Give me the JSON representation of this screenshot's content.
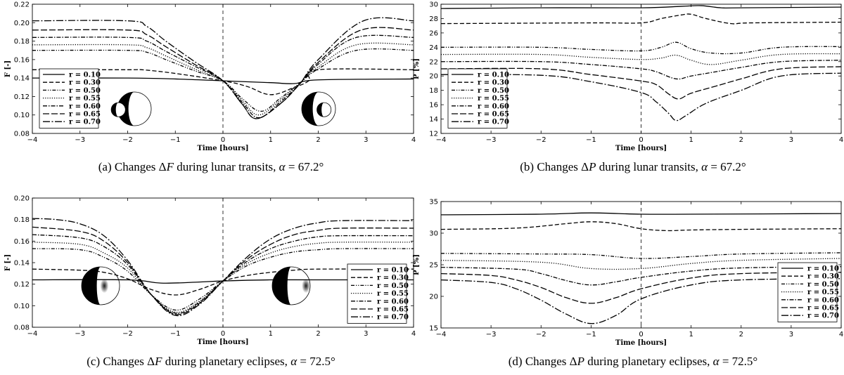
{
  "chart_data": [
    {
      "id": "a",
      "type": "line",
      "caption": {
        "prefix": "(a) Changes Δ",
        "var": "F",
        "mid": " during lunar transits, ",
        "alpha_sym": "α",
        "alpha_val": " = 67.2°"
      },
      "xlabel": "Time [hours]",
      "ylabel": "F [-]",
      "xlim": [
        -4,
        4
      ],
      "ylim": [
        0.08,
        0.22
      ],
      "xticks": [
        -4,
        -3,
        -2,
        -1,
        0,
        1,
        2,
        3,
        4
      ],
      "yticks": [
        "0.08",
        "0.10",
        "0.12",
        "0.14",
        "0.16",
        "0.18",
        "0.20",
        "0.22"
      ],
      "legend_position": "lower-left",
      "vline_at": 0,
      "insets": [
        "transit-left",
        "transit-right"
      ],
      "series": [
        {
          "name": "r = 0.10",
          "dash": "solid",
          "x": [
            -4,
            -2,
            -1,
            0,
            1,
            1.5,
            2,
            4
          ],
          "y": [
            0.14,
            0.14,
            0.139,
            0.137,
            0.135,
            0.134,
            0.138,
            0.139
          ]
        },
        {
          "name": "r = 0.30",
          "dash": "dashed",
          "x": [
            -4,
            -2,
            -1.7,
            -1,
            0,
            0.5,
            1,
            1.5,
            1.8,
            2,
            4
          ],
          "y": [
            0.149,
            0.149,
            0.149,
            0.145,
            0.137,
            0.131,
            0.122,
            0.13,
            0.137,
            0.149,
            0.149
          ]
        },
        {
          "name": "r = 0.50",
          "dash": "dashdotdot",
          "x": [
            -4,
            -2,
            -1.6,
            -1.2,
            -0.6,
            0,
            0.4,
            0.8,
            1.2,
            1.6,
            2,
            2.8,
            4
          ],
          "y": [
            0.17,
            0.17,
            0.168,
            0.16,
            0.148,
            0.137,
            0.118,
            0.104,
            0.118,
            0.134,
            0.15,
            0.17,
            0.17
          ]
        },
        {
          "name": "r = 0.55",
          "dash": "dotted",
          "x": [
            -4,
            -2,
            -1.6,
            -1.2,
            -0.6,
            0,
            0.4,
            0.75,
            1.2,
            1.6,
            2,
            2.8,
            4
          ],
          "y": [
            0.176,
            0.176,
            0.173,
            0.164,
            0.15,
            0.137,
            0.116,
            0.1,
            0.116,
            0.134,
            0.152,
            0.176,
            0.176
          ]
        },
        {
          "name": "r = 0.60",
          "dash": "dashdot",
          "x": [
            -4,
            -2,
            -1.6,
            -1.2,
            -0.6,
            0,
            0.4,
            0.75,
            1.2,
            1.6,
            2,
            2.8,
            4
          ],
          "y": [
            0.184,
            0.184,
            0.18,
            0.169,
            0.153,
            0.137,
            0.114,
            0.097,
            0.114,
            0.133,
            0.155,
            0.184,
            0.184
          ]
        },
        {
          "name": "r = 0.65",
          "dash": "longdash",
          "x": [
            -4,
            -2,
            -1.6,
            -1.2,
            -0.6,
            0,
            0.4,
            0.7,
            1.2,
            1.6,
            2,
            2.9,
            4
          ],
          "y": [
            0.192,
            0.192,
            0.187,
            0.174,
            0.155,
            0.137,
            0.112,
            0.096,
            0.112,
            0.133,
            0.157,
            0.192,
            0.192
          ]
        },
        {
          "name": "r = 0.70",
          "dash": "longdashdot",
          "x": [
            -4,
            -2,
            -1.6,
            -1.2,
            -0.6,
            0,
            0.4,
            0.7,
            1.2,
            1.6,
            2,
            2.95,
            4
          ],
          "y": [
            0.202,
            0.202,
            0.196,
            0.18,
            0.158,
            0.137,
            0.112,
            0.096,
            0.112,
            0.133,
            0.16,
            0.202,
            0.202
          ]
        }
      ]
    },
    {
      "id": "b",
      "type": "line",
      "caption": {
        "prefix": "(b) Changes Δ",
        "var": "P",
        "mid": " during lunar transits, ",
        "alpha_sym": "α",
        "alpha_val": " = 67.2°"
      },
      "xlabel": "Time [hours]",
      "ylabel": "P [%]",
      "xlim": [
        -4,
        4
      ],
      "ylim": [
        12,
        30
      ],
      "xticks": [
        -4,
        -3,
        -2,
        -1,
        0,
        1,
        2,
        3,
        4
      ],
      "yticks": [
        "12",
        "14",
        "16",
        "18",
        "20",
        "22",
        "24",
        "26",
        "28",
        "30"
      ],
      "legend_position": "lower-left",
      "vline_at": 0,
      "series": [
        {
          "name": "r = 0.10",
          "dash": "solid",
          "x": [
            -4,
            -2,
            0,
            0.8,
            1.2,
            1.6,
            2,
            4
          ],
          "y": [
            29.4,
            29.5,
            29.5,
            29.7,
            29.8,
            29.5,
            29.5,
            29.6
          ]
        },
        {
          "name": "r = 0.30",
          "dash": "dashed",
          "x": [
            -4,
            -1,
            0,
            0.4,
            0.8,
            1,
            1.3,
            1.8,
            2.2,
            4
          ],
          "y": [
            27.3,
            27.4,
            27.4,
            28.0,
            28.5,
            28.6,
            28.0,
            27.3,
            27.4,
            27.5
          ]
        },
        {
          "name": "r = 0.50",
          "dash": "dashdotdot",
          "x": [
            -4,
            -2,
            -1,
            0,
            0.4,
            0.7,
            1,
            1.4,
            2,
            2.8,
            4
          ],
          "y": [
            24.0,
            24.0,
            23.7,
            23.5,
            24.0,
            24.7,
            23.8,
            23.2,
            23.2,
            24.0,
            24.1
          ]
        },
        {
          "name": "r = 0.55",
          "dash": "dotted",
          "x": [
            -4,
            -2,
            -1,
            0,
            0.4,
            0.7,
            1,
            1.4,
            2,
            2.8,
            4
          ],
          "y": [
            23.0,
            23.0,
            22.6,
            22.3,
            22.5,
            22.9,
            22.2,
            21.6,
            22.2,
            23.0,
            23.1
          ]
        },
        {
          "name": "r = 0.60",
          "dash": "dashdot",
          "x": [
            -4,
            -2,
            -1,
            0,
            0.3,
            0.7,
            1,
            1.5,
            2,
            2.8,
            4
          ],
          "y": [
            22.0,
            22.0,
            21.6,
            21.0,
            20.6,
            19.6,
            20.0,
            20.6,
            21.2,
            22.0,
            22.2
          ]
        },
        {
          "name": "r = 0.65",
          "dash": "longdash",
          "x": [
            -4,
            -2,
            -1,
            0,
            0.3,
            0.55,
            0.75,
            1,
            1.5,
            2,
            2.8,
            4
          ],
          "y": [
            21.0,
            21.0,
            20.2,
            19.3,
            18.8,
            17.5,
            16.8,
            17.6,
            18.6,
            19.6,
            21.0,
            21.3
          ]
        },
        {
          "name": "r = 0.70",
          "dash": "longdashdot",
          "x": [
            -4,
            -2,
            -1,
            0,
            0.3,
            0.55,
            0.7,
            0.9,
            1.3,
            2,
            2.8,
            4
          ],
          "y": [
            20.2,
            20.1,
            19.2,
            17.7,
            16.4,
            14.8,
            13.8,
            14.5,
            16.2,
            18.0,
            20.0,
            20.4
          ]
        }
      ]
    },
    {
      "id": "c",
      "type": "line",
      "caption": {
        "prefix": "(c) Changes Δ",
        "var": "F",
        "mid": " during planetary eclipses, ",
        "alpha_sym": "α",
        "alpha_val": " = 72.5°"
      },
      "xlabel": "Time [hours]",
      "ylabel": "F [-]",
      "xlim": [
        -4,
        4
      ],
      "ylim": [
        0.08,
        0.2
      ],
      "xticks": [
        -4,
        -3,
        -2,
        -1,
        0,
        1,
        2,
        3,
        4
      ],
      "yticks": [
        "0.08",
        "0.10",
        "0.12",
        "0.14",
        "0.16",
        "0.18",
        "0.20"
      ],
      "legend_position": "right",
      "vline_at": 0,
      "insets": [
        "eclipse-left",
        "eclipse-right"
      ],
      "series": [
        {
          "name": "r = 0.10",
          "dash": "solid",
          "x": [
            -4,
            -2,
            -1.3,
            -0.5,
            0,
            1,
            2,
            4
          ],
          "y": [
            0.124,
            0.124,
            0.121,
            0.122,
            0.123,
            0.124,
            0.124,
            0.124
          ]
        },
        {
          "name": "r = 0.30",
          "dash": "dashed",
          "x": [
            -4,
            -3,
            -2.5,
            -2,
            -1.5,
            -1,
            -0.5,
            0,
            0.5,
            1,
            1.5,
            2,
            4
          ],
          "y": [
            0.134,
            0.133,
            0.131,
            0.125,
            0.115,
            0.11,
            0.115,
            0.123,
            0.128,
            0.131,
            0.133,
            0.134,
            0.134
          ]
        },
        {
          "name": "r = 0.50",
          "dash": "dashdotdot",
          "x": [
            -4,
            -3,
            -2.5,
            -2,
            -1.5,
            -1,
            -0.5,
            0,
            0.5,
            1,
            1.5,
            2,
            2.5,
            4
          ],
          "y": [
            0.153,
            0.152,
            0.145,
            0.132,
            0.11,
            0.096,
            0.106,
            0.123,
            0.137,
            0.145,
            0.15,
            0.152,
            0.153,
            0.153
          ]
        },
        {
          "name": "r = 0.55",
          "dash": "dotted",
          "x": [
            -4,
            -3,
            -2.5,
            -2,
            -1.5,
            -1,
            -0.5,
            0,
            0.5,
            1,
            1.5,
            2,
            2.5,
            4
          ],
          "y": [
            0.159,
            0.157,
            0.149,
            0.135,
            0.11,
            0.094,
            0.104,
            0.123,
            0.139,
            0.149,
            0.155,
            0.158,
            0.159,
            0.159
          ]
        },
        {
          "name": "r = 0.60",
          "dash": "dashdot",
          "x": [
            -4,
            -3,
            -2.5,
            -2,
            -1.5,
            -1,
            -0.5,
            0,
            0.5,
            1,
            1.5,
            2,
            2.5,
            4
          ],
          "y": [
            0.166,
            0.163,
            0.155,
            0.138,
            0.11,
            0.093,
            0.103,
            0.123,
            0.141,
            0.153,
            0.16,
            0.164,
            0.165,
            0.165
          ]
        },
        {
          "name": "r = 0.65",
          "dash": "longdash",
          "x": [
            -4,
            -3,
            -2.5,
            -2,
            -1.5,
            -1,
            -0.5,
            0,
            0.5,
            1,
            1.5,
            2,
            2.5,
            4
          ],
          "y": [
            0.173,
            0.169,
            0.16,
            0.14,
            0.11,
            0.092,
            0.102,
            0.123,
            0.143,
            0.157,
            0.166,
            0.17,
            0.172,
            0.172
          ]
        },
        {
          "name": "r = 0.70",
          "dash": "longdashdot",
          "x": [
            -4,
            -3.5,
            -3,
            -2.5,
            -2,
            -1.5,
            -1,
            -0.5,
            0,
            0.5,
            1,
            1.5,
            2,
            2.5,
            4
          ],
          "y": [
            0.181,
            0.18,
            0.176,
            0.165,
            0.142,
            0.11,
            0.091,
            0.101,
            0.123,
            0.145,
            0.162,
            0.172,
            0.177,
            0.179,
            0.179
          ]
        }
      ]
    },
    {
      "id": "d",
      "type": "line",
      "caption": {
        "prefix": "(d) Changes Δ",
        "var": "P",
        "mid": " during planetary eclipses, ",
        "alpha_sym": "α",
        "alpha_val": " = 72.5°"
      },
      "xlabel": "Time [hours]",
      "ylabel": "P [%]",
      "xlim": [
        -4,
        4
      ],
      "ylim": [
        15,
        35
      ],
      "xticks": [
        -4,
        -3,
        -2,
        -1,
        0,
        1,
        2,
        3,
        4
      ],
      "yticks": [
        "15",
        "20",
        "25",
        "30",
        "35"
      ],
      "legend_position": "lower-right",
      "vline_at": 0,
      "series": [
        {
          "name": "r = 0.10",
          "dash": "solid",
          "x": [
            -4,
            -2,
            -1,
            0,
            1,
            4
          ],
          "y": [
            32.9,
            33.0,
            33.2,
            33.0,
            33.0,
            33.1
          ]
        },
        {
          "name": "r = 0.30",
          "dash": "dashed",
          "x": [
            -4,
            -2.5,
            -1.5,
            -1,
            -0.5,
            0,
            0.5,
            1,
            2,
            4
          ],
          "y": [
            30.6,
            30.8,
            31.5,
            31.8,
            31.5,
            30.7,
            30.4,
            30.5,
            30.6,
            30.7
          ]
        },
        {
          "name": "r = 0.50",
          "dash": "dashdotdot",
          "x": [
            -4,
            -2,
            -1,
            0,
            1,
            2,
            4
          ],
          "y": [
            26.8,
            26.7,
            26.6,
            26.0,
            26.3,
            26.7,
            26.9
          ]
        },
        {
          "name": "r = 0.55",
          "dash": "dotted",
          "x": [
            -4,
            -2,
            -1,
            0,
            1,
            2,
            4
          ],
          "y": [
            25.7,
            25.4,
            24.4,
            24.4,
            25.2,
            25.7,
            26.0
          ]
        },
        {
          "name": "r = 0.60",
          "dash": "dashdot",
          "x": [
            -4,
            -2.5,
            -2,
            -1.5,
            -1,
            -0.5,
            0,
            1,
            2,
            4
          ],
          "y": [
            24.6,
            24.3,
            23.6,
            22.5,
            21.8,
            22.3,
            23.0,
            24.0,
            24.5,
            24.7
          ]
        },
        {
          "name": "r = 0.65",
          "dash": "longdash",
          "x": [
            -4,
            -3,
            -2.5,
            -2,
            -1.5,
            -1,
            -0.5,
            0,
            1,
            2,
            4
          ],
          "y": [
            23.6,
            23.3,
            22.6,
            21.4,
            19.8,
            18.9,
            19.8,
            21.2,
            22.9,
            23.6,
            23.8
          ]
        },
        {
          "name": "r = 0.70",
          "dash": "longdashdot",
          "x": [
            -4,
            -3,
            -2.5,
            -2,
            -1.5,
            -1,
            -0.5,
            0,
            1,
            2,
            4
          ],
          "y": [
            22.6,
            22.2,
            21.2,
            19.4,
            17.2,
            15.7,
            17.0,
            19.6,
            21.8,
            22.6,
            22.8
          ]
        }
      ]
    }
  ]
}
